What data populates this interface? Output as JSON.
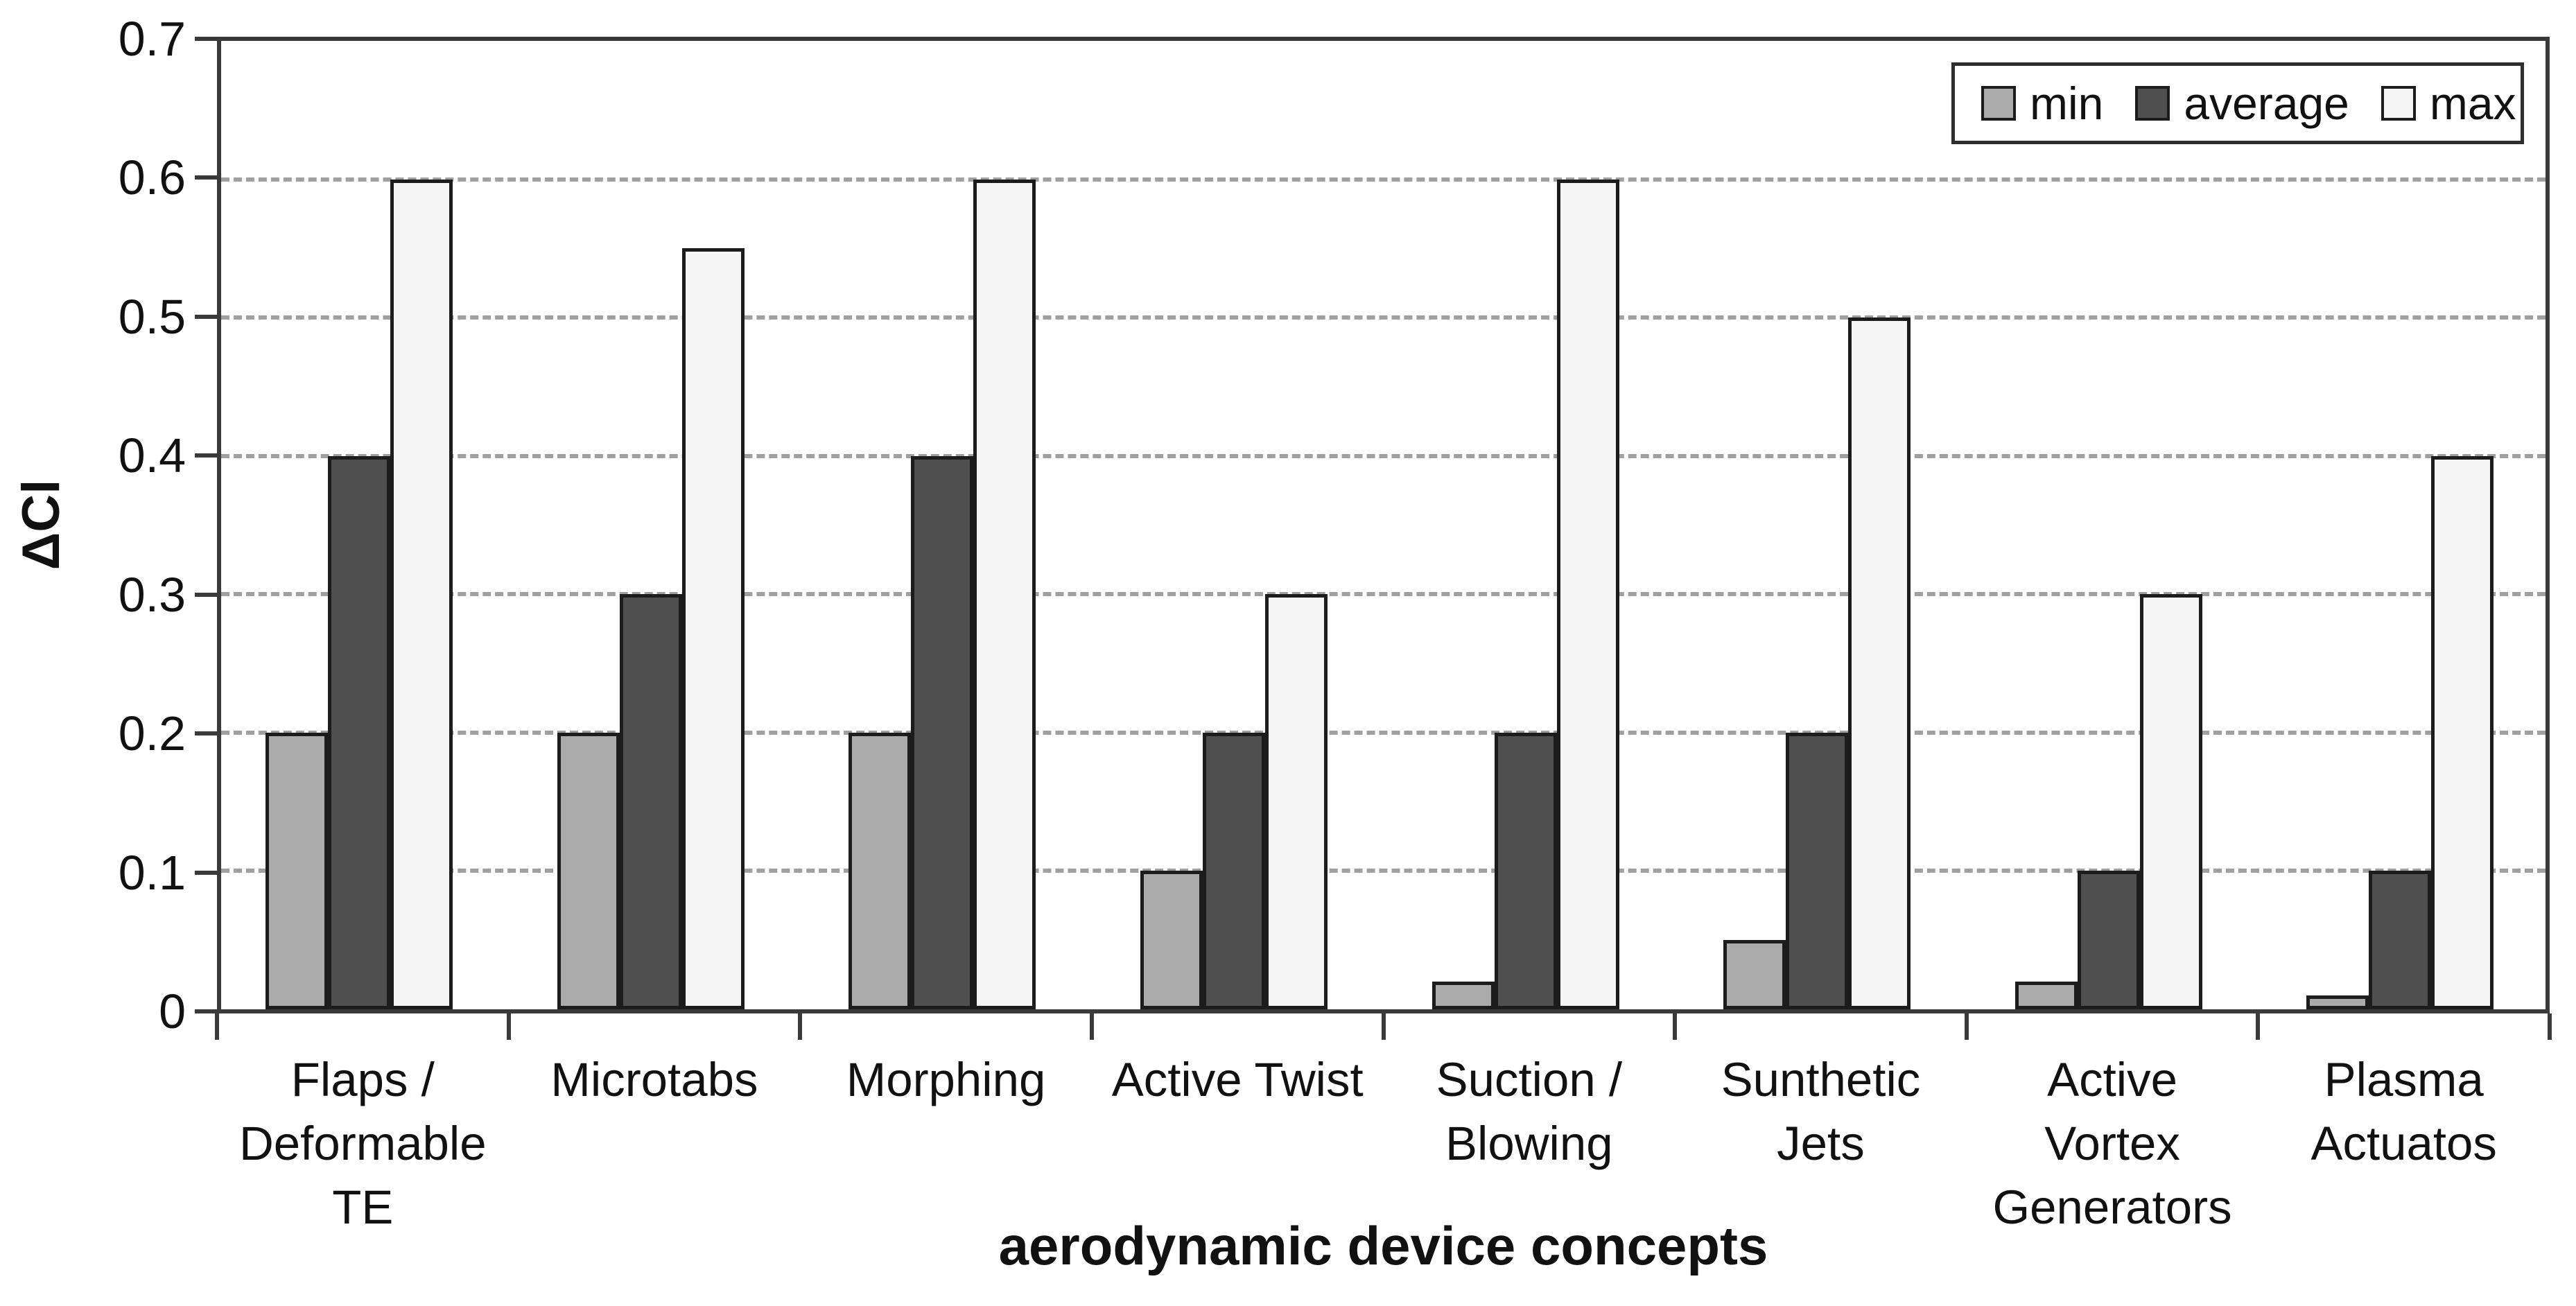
{
  "page": {
    "background": "#ffffff"
  },
  "chart_data": {
    "type": "bar",
    "title": "",
    "xlabel": "aerodynamic device concepts",
    "ylabel": "ΔCl",
    "ylim": [
      0,
      0.7
    ],
    "yticks": {
      "values": [
        0,
        0.1,
        0.2,
        0.3,
        0.4,
        0.5,
        0.6,
        0.7
      ],
      "labels": [
        "0",
        "0.1",
        "0.2",
        "0.3",
        "0.4",
        "0.5",
        "0.6",
        "0.7"
      ]
    },
    "gridlines": {
      "style": "dashed",
      "color": "#a0a0a0",
      "at": [
        0.1,
        0.2,
        0.3,
        0.4,
        0.5,
        0.6
      ]
    },
    "legend": {
      "position": "top-right-inside"
    },
    "categories": [
      "Flaps /\nDeformable\nTE",
      "Microtabs",
      "Morphing",
      "Active Twist",
      "Suction /\nBlowing",
      "Sunthetic\nJets",
      "Active\nVortex\nGenerators",
      "Plasma\nActuatos"
    ],
    "series": [
      {
        "name": "min",
        "color": "#ababab",
        "values": [
          0.2,
          0.2,
          0.2,
          0.1,
          0.02,
          0.05,
          0.02,
          0.01
        ]
      },
      {
        "name": "average",
        "color": "#4f4f4f",
        "values": [
          0.4,
          0.3,
          0.4,
          0.2,
          0.2,
          0.2,
          0.1,
          0.1
        ]
      },
      {
        "name": "max",
        "color": "#f5f5f5",
        "values": [
          0.6,
          0.55,
          0.6,
          0.3,
          0.6,
          0.5,
          0.3,
          0.4
        ]
      }
    ],
    "colors": {
      "axis": "#3a3a3a",
      "bar_border": "#1c1c1c",
      "gridline": "#a0a0a0",
      "text": "#111111",
      "background": "#ffffff"
    }
  }
}
